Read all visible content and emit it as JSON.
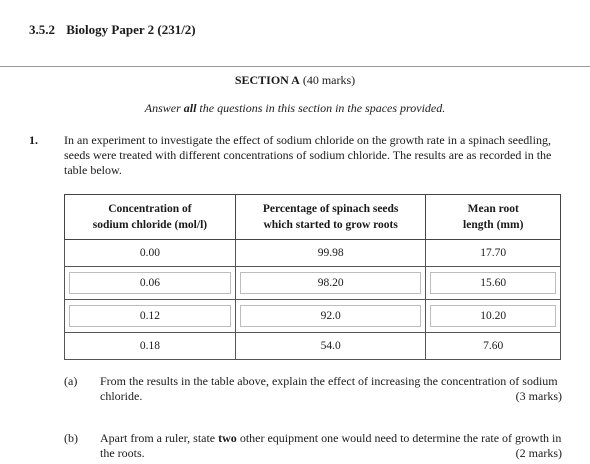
{
  "header": {
    "section_number": "3.5.2",
    "title": "Biology Paper 2 (231/2)"
  },
  "section": {
    "title_bold": "SECTION A",
    "marks": "(40 marks)",
    "instructions_pre": "Answer ",
    "instructions_bold": "all",
    "instructions_post": " the questions in this section in the spaces provided."
  },
  "question1": {
    "number": "1.",
    "text": "In an experiment to investigate the effect of sodium chloride on the growth rate in a spinach seedling, seeds were treated with different concentrations of sodium chloride. The results are as recorded in the table below."
  },
  "table": {
    "headers": [
      {
        "line1": "Concentration of",
        "line2": "sodium chloride (mol/l)"
      },
      {
        "line1": "Percentage of spinach seeds",
        "line2": "which started to grow roots"
      },
      {
        "line1": "Mean root",
        "line2": "length (mm)"
      }
    ],
    "rows": [
      [
        "0.00",
        "99.98",
        "17.70"
      ],
      [
        "0.06",
        "98.20",
        "15.60"
      ],
      [
        "0.12",
        "92.0",
        "10.20"
      ],
      [
        "0.18",
        "54.0",
        "7.60"
      ]
    ]
  },
  "part_a": {
    "label": "(a)",
    "text": "From the results in the table above, explain the effect of increasing the concentration of sodium chloride.",
    "marks": "(3 marks)"
  },
  "part_b": {
    "label": "(b)",
    "text_pre": "Apart from a ruler, state ",
    "text_bold": "two",
    "text_post": " other equipment one would need to determine the rate of growth in the roots.",
    "marks": "(2 marks)"
  }
}
